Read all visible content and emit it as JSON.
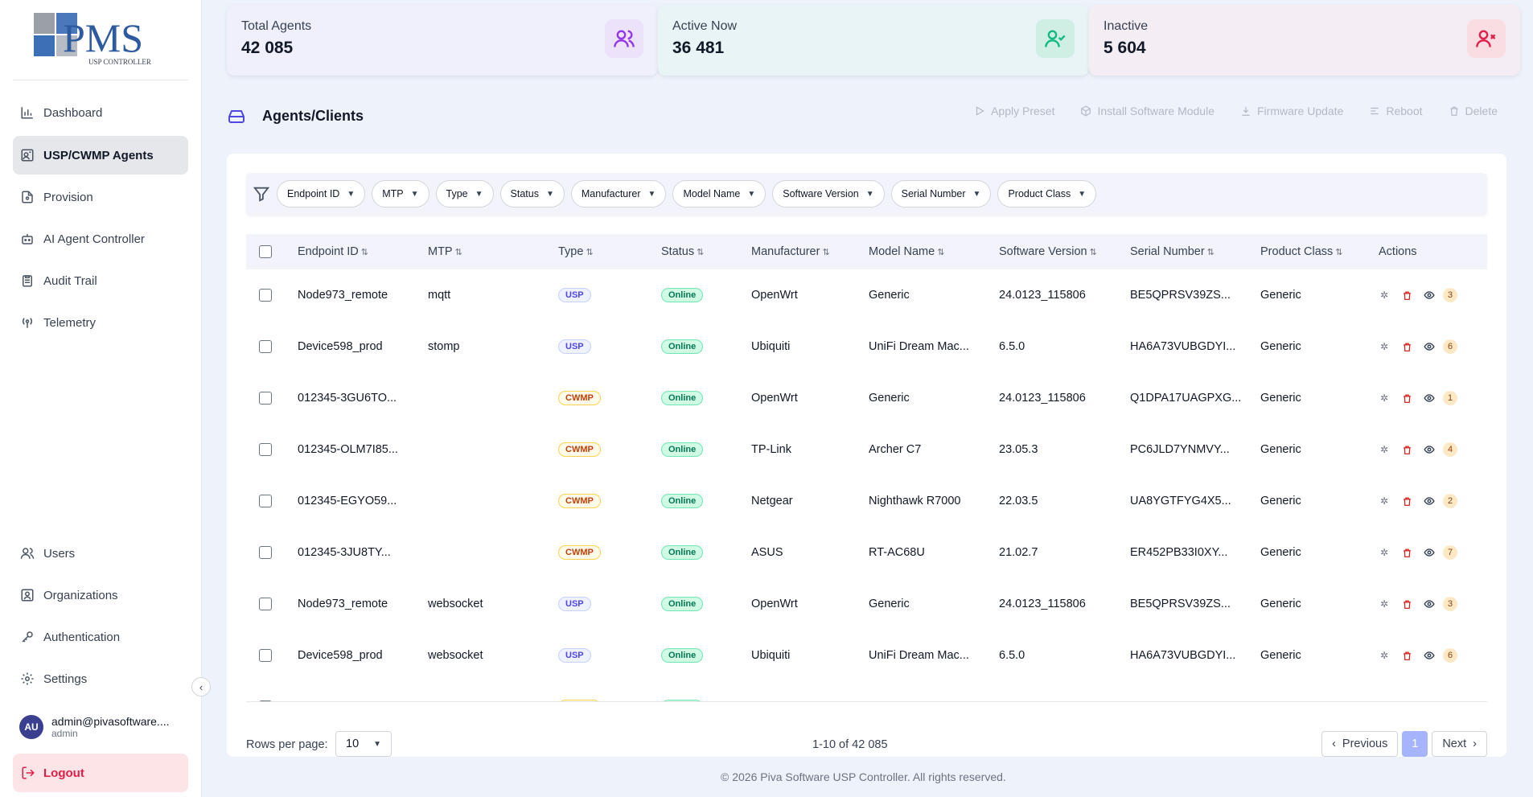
{
  "logo": {
    "text": "PMS",
    "subtext": "USP CONTROLLER"
  },
  "sidebar": {
    "items": [
      {
        "label": "Dashboard",
        "icon": "chart-bar-icon"
      },
      {
        "label": "USP/CWMP Agents",
        "icon": "agents-icon",
        "active": true
      },
      {
        "label": "Provision",
        "icon": "document-icon"
      },
      {
        "label": "AI Agent Controller",
        "icon": "robot-icon"
      },
      {
        "label": "Audit Trail",
        "icon": "clipboard-icon"
      },
      {
        "label": "Telemetry",
        "icon": "antenna-icon"
      }
    ],
    "bottom_items": [
      {
        "label": "Users",
        "icon": "users-icon"
      },
      {
        "label": "Organizations",
        "icon": "organization-icon"
      },
      {
        "label": "Authentication",
        "icon": "key-icon"
      },
      {
        "label": "Settings",
        "icon": "gear-icon"
      }
    ],
    "user": {
      "initials": "AU",
      "email": "admin@pivasoftware....",
      "role": "admin"
    },
    "logout_label": "Logout"
  },
  "stats": [
    {
      "label": "Total Agents",
      "value": "42 085",
      "bg": "#f0effc",
      "icon_bg": "#ece3fb",
      "icon_color": "#9333ea"
    },
    {
      "label": "Active Now",
      "value": "36 481",
      "bg": "#e9f4f6",
      "icon_bg": "#cfeee4",
      "icon_color": "#10b981"
    },
    {
      "label": "Inactive",
      "value": "5 604",
      "bg": "#f5edf4",
      "icon_bg": "#f9dde2",
      "icon_color": "#e11d48"
    }
  ],
  "page": {
    "title": "Agents/Clients",
    "toolbar": {
      "apply_preset": "Apply Preset",
      "install_module": "Install Software Module",
      "firmware_update": "Firmware Update",
      "reboot": "Reboot",
      "delete": "Delete"
    }
  },
  "filters": [
    "Endpoint ID",
    "MTP",
    "Type",
    "Status",
    "Manufacturer",
    "Model Name",
    "Software Version",
    "Serial Number",
    "Product Class"
  ],
  "table": {
    "columns": [
      "Endpoint ID",
      "MTP",
      "Type",
      "Status",
      "Manufacturer",
      "Model Name",
      "Software Version",
      "Serial Number",
      "Product Class",
      "Actions"
    ],
    "rows": [
      {
        "endpoint": "Node973_remote",
        "mtp": "mqtt",
        "type": "USP",
        "status": "Online",
        "manufacturer": "OpenWrt",
        "model": "Generic",
        "software": "24.0123_115806",
        "serial": "BE5QPRSV39ZS...",
        "product_class": "Generic",
        "count": "3"
      },
      {
        "endpoint": "Device598_prod",
        "mtp": "stomp",
        "type": "USP",
        "status": "Online",
        "manufacturer": "Ubiquiti",
        "model": "UniFi Dream Mac...",
        "software": "6.5.0",
        "serial": "HA6A73VUBGDYI...",
        "product_class": "Generic",
        "count": "6"
      },
      {
        "endpoint": "012345-3GU6TO...",
        "mtp": "",
        "type": "CWMP",
        "status": "Online",
        "manufacturer": "OpenWrt",
        "model": "Generic",
        "software": "24.0123_115806",
        "serial": "Q1DPA17UAGPXG...",
        "product_class": "Generic",
        "count": "1"
      },
      {
        "endpoint": "012345-OLM7I85...",
        "mtp": "",
        "type": "CWMP",
        "status": "Online",
        "manufacturer": "TP-Link",
        "model": "Archer C7",
        "software": "23.05.3",
        "serial": "PC6JLD7YNMVY...",
        "product_class": "Generic",
        "count": "4"
      },
      {
        "endpoint": "012345-EGYO59...",
        "mtp": "",
        "type": "CWMP",
        "status": "Online",
        "manufacturer": "Netgear",
        "model": "Nighthawk R7000",
        "software": "22.03.5",
        "serial": "UA8YGTFYG4X5...",
        "product_class": "Generic",
        "count": "2"
      },
      {
        "endpoint": "012345-3JU8TY...",
        "mtp": "",
        "type": "CWMP",
        "status": "Online",
        "manufacturer": "ASUS",
        "model": "RT-AC68U",
        "software": "21.02.7",
        "serial": "ER452PB33I0XY...",
        "product_class": "Generic",
        "count": "7"
      },
      {
        "endpoint": "Node973_remote",
        "mtp": "websocket",
        "type": "USP",
        "status": "Online",
        "manufacturer": "OpenWrt",
        "model": "Generic",
        "software": "24.0123_115806",
        "serial": "BE5QPRSV39ZS...",
        "product_class": "Generic",
        "count": "3"
      },
      {
        "endpoint": "Device598_prod",
        "mtp": "websocket",
        "type": "USP",
        "status": "Online",
        "manufacturer": "Ubiquiti",
        "model": "UniFi Dream Mac...",
        "software": "6.5.0",
        "serial": "HA6A73VUBGDYI...",
        "product_class": "Generic",
        "count": "6"
      },
      {
        "endpoint": "",
        "mtp": "",
        "type": "CWMP",
        "status": "Online",
        "manufacturer": "",
        "model": "",
        "software": "",
        "serial": "",
        "product_class": "",
        "count": ""
      }
    ]
  },
  "pagination": {
    "rows_label": "Rows per page:",
    "rows_value": "10",
    "range": "1-10 of 42 085",
    "previous": "Previous",
    "current": "1",
    "next": "Next"
  },
  "footer": {
    "copyright": "© 2026 Piva Software USP Controller. All rights reserved."
  }
}
